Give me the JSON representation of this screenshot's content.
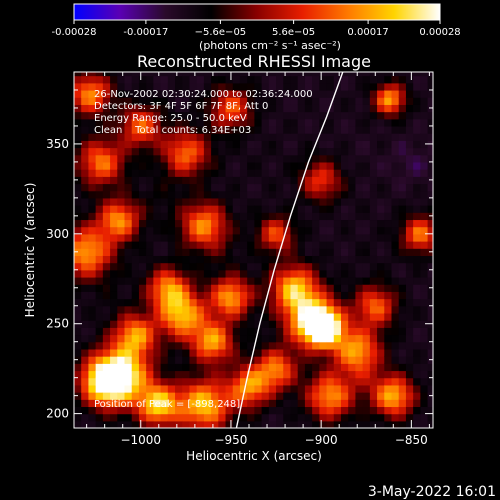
{
  "window": {
    "title": "Reconstructed RHESSI Image",
    "footer_date": "3-May-2022 16:01"
  },
  "colorbar": {
    "tick_labels": [
      "-0.00028",
      "-0.00017",
      "−5.6e−05",
      "5.6e−05",
      "0.00017",
      "0.00028"
    ],
    "tick_values": [
      -0.00028,
      -0.00017,
      -5.6e-05,
      5.6e-05,
      0.00017,
      0.00028
    ],
    "range": [
      -0.00028,
      0.00028
    ],
    "unit_label": "(photons cm⁻² s⁻¹ asec⁻²)",
    "colors": [
      "#0000ff",
      "#5a00b4",
      "#2a0a2a",
      "#000000",
      "#8a0000",
      "#e81e00",
      "#ff7a00",
      "#ffd400",
      "#ffffff"
    ]
  },
  "annotations": [
    "26-Nov-2002 02:30:24.000 to 02:36:24.000",
    "Detectors: 3F 4F 5F 6F 7F 8F, Att 0",
    "Energy Range: 25.0 - 50.0 keV",
    "Clean    Total counts: 6.34E+03"
  ],
  "peak_label": "Position of Peak = [-898,248]",
  "chart_data": {
    "type": "heatmap",
    "title": "Reconstructed RHESSI Image",
    "xlabel": "Heliocentric X (arcsec)",
    "ylabel": "Heliocentric Y (arcsec)",
    "xlim": [
      -1037,
      -838
    ],
    "ylim": [
      192,
      390
    ],
    "x_ticks": [
      -1000,
      -950,
      -900,
      -850
    ],
    "x_tick_labels": [
      "−1000",
      "−950",
      "−900",
      "−850"
    ],
    "y_ticks": [
      200,
      250,
      300,
      350
    ],
    "y_tick_labels": [
      "200",
      "250",
      "300",
      "350"
    ],
    "value_range": [
      -0.00028,
      0.00028
    ],
    "peak_position": [
      -898,
      248
    ],
    "limb_curve": [
      [
        -947,
        192
      ],
      [
        -941,
        220
      ],
      [
        -934,
        250
      ],
      [
        -926,
        280
      ],
      [
        -917,
        310
      ],
      [
        -907,
        340
      ],
      [
        -897,
        365
      ],
      [
        -888,
        390
      ]
    ],
    "blobs": [
      {
        "x": -1020,
        "y": 218,
        "v": 0.00028,
        "s": 9
      },
      {
        "x": -1010,
        "y": 222,
        "v": 0.00026,
        "s": 11
      },
      {
        "x": -990,
        "y": 205,
        "v": 0.00025,
        "s": 8
      },
      {
        "x": -965,
        "y": 205,
        "v": 0.00024,
        "s": 10
      },
      {
        "x": -1003,
        "y": 244,
        "v": 0.00018,
        "s": 8
      },
      {
        "x": -977,
        "y": 255,
        "v": 0.00022,
        "s": 9
      },
      {
        "x": -960,
        "y": 240,
        "v": 0.0002,
        "s": 8
      },
      {
        "x": -1030,
        "y": 290,
        "v": 0.0002,
        "s": 10
      },
      {
        "x": -1012,
        "y": 308,
        "v": 0.00018,
        "s": 8
      },
      {
        "x": -985,
        "y": 270,
        "v": 0.00017,
        "s": 8
      },
      {
        "x": -965,
        "y": 305,
        "v": 0.00018,
        "s": 9
      },
      {
        "x": -950,
        "y": 265,
        "v": 0.0002,
        "s": 8
      },
      {
        "x": -1022,
        "y": 340,
        "v": 0.00016,
        "s": 9
      },
      {
        "x": -1000,
        "y": 360,
        "v": 0.00014,
        "s": 8
      },
      {
        "x": -975,
        "y": 345,
        "v": 0.00015,
        "s": 9
      },
      {
        "x": -1028,
        "y": 378,
        "v": 0.00018,
        "s": 8
      },
      {
        "x": -905,
        "y": 252,
        "v": 0.00028,
        "s": 10
      },
      {
        "x": -898,
        "y": 248,
        "v": 0.00028,
        "s": 7
      },
      {
        "x": -915,
        "y": 270,
        "v": 0.00022,
        "s": 9
      },
      {
        "x": -880,
        "y": 235,
        "v": 0.0002,
        "s": 9
      },
      {
        "x": -895,
        "y": 210,
        "v": 0.00019,
        "s": 9
      },
      {
        "x": -860,
        "y": 210,
        "v": 0.00022,
        "s": 8
      },
      {
        "x": -870,
        "y": 260,
        "v": 0.00014,
        "s": 8
      },
      {
        "x": -925,
        "y": 225,
        "v": 0.00016,
        "s": 8
      },
      {
        "x": -925,
        "y": 300,
        "v": 0.00012,
        "s": 7
      },
      {
        "x": -940,
        "y": 215,
        "v": 0.00018,
        "s": 8
      },
      {
        "x": -862,
        "y": 375,
        "v": 0.0002,
        "s": 6
      },
      {
        "x": -845,
        "y": 300,
        "v": 0.00016,
        "s": 7
      },
      {
        "x": -900,
        "y": 330,
        "v": 0.0001,
        "s": 8
      },
      {
        "x": -950,
        "y": 370,
        "v": 0.00013,
        "s": 8
      },
      {
        "x": -880,
        "y": 345,
        "v": -0.00012,
        "s": 10
      },
      {
        "x": -850,
        "y": 340,
        "v": -0.00015,
        "s": 9
      },
      {
        "x": -870,
        "y": 290,
        "v": -0.0001,
        "s": 11
      },
      {
        "x": -935,
        "y": 340,
        "v": -0.0001,
        "s": 10
      },
      {
        "x": -990,
        "y": 320,
        "v": -8e-05,
        "s": 9
      },
      {
        "x": -1015,
        "y": 262,
        "v": -9e-05,
        "s": 9
      },
      {
        "x": -955,
        "y": 290,
        "v": -8e-05,
        "s": 8
      },
      {
        "x": -905,
        "y": 380,
        "v": -0.00011,
        "s": 8
      },
      {
        "x": -875,
        "y": 220,
        "v": -6e-05,
        "s": 7
      }
    ]
  }
}
